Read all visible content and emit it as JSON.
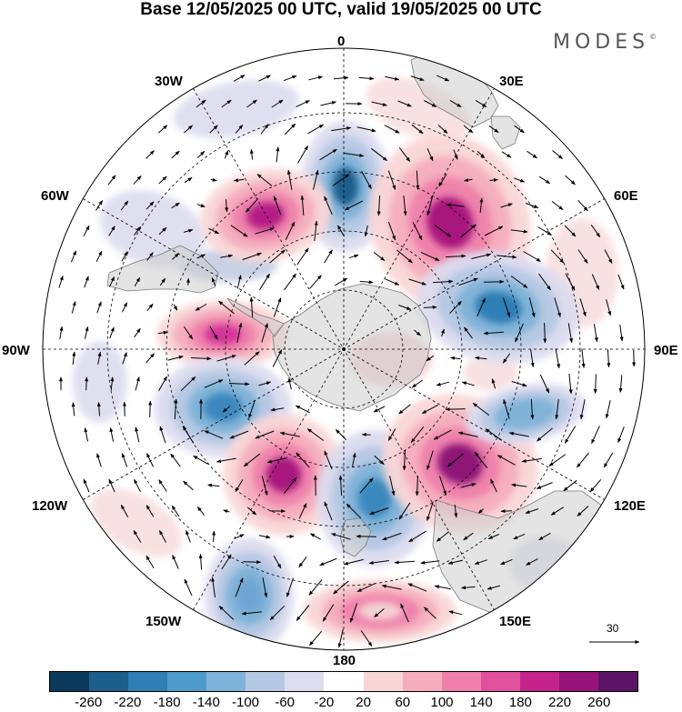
{
  "title": "Base 12/05/2025 00 UTC, valid 19/05/2025 00 UTC",
  "logo": {
    "text": "MODES",
    "mark": "©"
  },
  "projection": "south-polar-stereographic",
  "longitude_labels": {
    "lon_0": "0",
    "lon_30e": "30E",
    "lon_60e": "60E",
    "lon_90e": "90E",
    "lon_120e": "120E",
    "lon_150e": "150E",
    "lon_180": "180",
    "lon_150w": "150W",
    "lon_120w": "120W",
    "lon_90w": "90W",
    "lon_60w": "60W",
    "lon_30w": "30W"
  },
  "vector_reference": {
    "value": "30"
  },
  "colorbar": {
    "ticks": [
      "-260",
      "-220",
      "-180",
      "-140",
      "-100",
      "-60",
      "-20",
      "20",
      "60",
      "100",
      "140",
      "180",
      "220",
      "260"
    ],
    "colors": [
      "#0b3a5c",
      "#1c5e8c",
      "#2f7fb5",
      "#4e9bcb",
      "#7fb2d8",
      "#b5c8e3",
      "#dcdcef",
      "#ffffff",
      "#f9d6d6",
      "#f5adbd",
      "#ee80aa",
      "#e0509d",
      "#c4238c",
      "#96137a",
      "#5c1566"
    ]
  },
  "anomaly_centers": [
    {
      "name": "neg-0",
      "value": -240,
      "color": "#1c5e8c"
    },
    {
      "name": "pos-45e",
      "value": 220,
      "color": "#a8157e"
    },
    {
      "name": "neg-75e",
      "value": -200,
      "color": "#2f7fb5"
    },
    {
      "name": "pos-50w",
      "value": 180,
      "color": "#b61f86"
    },
    {
      "name": "pos-85w",
      "value": 180,
      "color": "#d4359a"
    },
    {
      "name": "neg-105w",
      "value": -180,
      "color": "#3b88be"
    },
    {
      "name": "pos-140w",
      "value": 220,
      "color": "#a8157e"
    },
    {
      "name": "neg-170e",
      "value": -180,
      "color": "#3b88be"
    },
    {
      "name": "pos-130e",
      "value": 220,
      "color": "#8e1477"
    },
    {
      "name": "neg-105e",
      "value": -140,
      "color": "#7fb2d8"
    },
    {
      "name": "neg-155w",
      "value": -140,
      "color": "#6ea5d2"
    },
    {
      "name": "pos-180",
      "value": 60,
      "color": "#f5cfd4"
    }
  ]
}
